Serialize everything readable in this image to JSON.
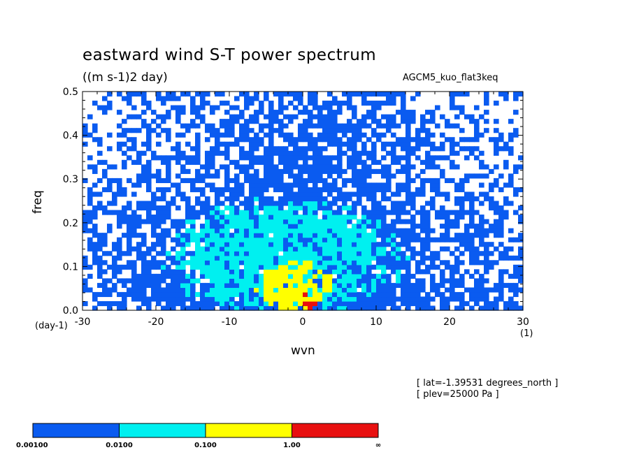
{
  "title": "eastward wind S-T power spectrum",
  "units": "((m s-1)2 day)",
  "model": "AGCM5_kuo_flat3keq",
  "info": [
    "[ lat=-1.39531 degrees_north ]",
    "[ plev=25000 Pa ]"
  ],
  "chart_data": {
    "type": "heatmap",
    "xlabel": "wvn",
    "ylabel": "freq",
    "x_unit": "(1)",
    "y_unit": "(day-1)",
    "xlim": [
      -30,
      30
    ],
    "ylim": [
      0,
      0.5
    ],
    "x_ticks": [
      "-30",
      "-20",
      "-10",
      "0",
      "10",
      "20",
      "30"
    ],
    "y_ticks": [
      "0.0",
      "0.1",
      "0.2",
      "0.3",
      "0.4",
      "0.5"
    ],
    "levels": {
      "labels": [
        "0.00100",
        "0.0100",
        "0.100",
        "1.00",
        "∞"
      ],
      "colors": [
        "#0a5bf0",
        "#00f0f0",
        "#ffff00",
        "#e81010"
      ]
    },
    "regions": {
      "level1": {
        "x_range": [
          -30,
          28
        ],
        "y_range": [
          0,
          0.5
        ],
        "peak": [
          0,
          0.05
        ]
      },
      "level2": {
        "x_range": [
          -17,
          12
        ],
        "y_range": [
          0,
          0.24
        ],
        "peak": [
          -1,
          0.06
        ]
      },
      "level3": {
        "x_range": [
          -6,
          4
        ],
        "y_range": [
          0,
          0.11
        ],
        "peak": [
          0.5,
          0.04
        ]
      },
      "level4": {
        "x_range": [
          0,
          2
        ],
        "y_range": [
          0,
          0.05
        ],
        "peak": [
          1,
          0.045
        ]
      }
    }
  }
}
